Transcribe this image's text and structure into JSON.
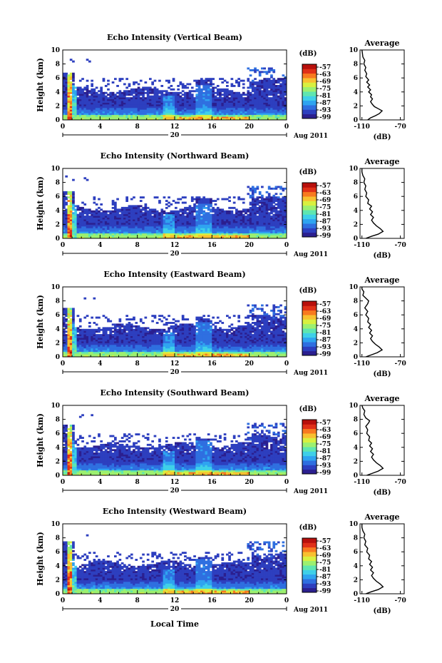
{
  "chart_data": [
    {
      "type": "heatmap",
      "title": "Echo Intensity (Vertical Beam)",
      "ylabel": "Height (km)",
      "ylim": [
        0,
        10
      ],
      "yticks": [
        "0",
        "2",
        "4",
        "6",
        "8",
        "10"
      ],
      "xlim": [
        0,
        24
      ],
      "xticks": [
        "0",
        "4",
        "8",
        "12",
        "16",
        "20",
        "0"
      ],
      "date_day": "20",
      "date_label": "Aug 2011",
      "colorbar": {
        "unit": "(dB)",
        "labels": [
          "-57",
          "-63",
          "-69",
          "-75",
          "-81",
          "-87",
          "-93",
          "-99"
        ],
        "range": [
          -99,
          -57
        ]
      },
      "average": {
        "title": "Average",
        "xlabel": "(dB)",
        "xticks": [
          "-110",
          "-70"
        ],
        "xlim": [
          -112,
          -66
        ],
        "profile": [
          [
            -104,
            0
          ],
          [
            -101,
            0.3
          ],
          [
            -96,
            0.6
          ],
          [
            -92,
            0.9
          ],
          [
            -89,
            1.3
          ],
          [
            -93,
            1.6
          ],
          [
            -97,
            1.9
          ],
          [
            -99,
            2.2
          ],
          [
            -101,
            2.6
          ],
          [
            -99,
            3.0
          ],
          [
            -101,
            3.3
          ],
          [
            -100,
            3.6
          ],
          [
            -103,
            4.0
          ],
          [
            -101,
            4.3
          ],
          [
            -104,
            4.7
          ],
          [
            -102,
            5.0
          ],
          [
            -105,
            5.4
          ],
          [
            -103,
            5.7
          ],
          [
            -106,
            6.2
          ],
          [
            -105,
            6.6
          ],
          [
            -107,
            7.1
          ],
          [
            -106,
            7.5
          ],
          [
            -108,
            8.0
          ],
          [
            -107,
            8.5
          ],
          [
            -109,
            9.0
          ],
          [
            -109.5,
            9.5
          ],
          [
            -110,
            10
          ]
        ]
      }
    },
    {
      "type": "heatmap",
      "title": "Echo Intensity (Northward Beam)",
      "ylabel": "Height (km)",
      "ylim": [
        0,
        10
      ],
      "yticks": [
        "0",
        "2",
        "4",
        "6",
        "8",
        "10"
      ],
      "xlim": [
        0,
        24
      ],
      "xticks": [
        "0",
        "4",
        "8",
        "12",
        "16",
        "20",
        "0"
      ],
      "date_day": "20",
      "date_label": "Aug 2011",
      "colorbar": {
        "unit": "(dB)",
        "labels": [
          "-57",
          "-63",
          "-69",
          "-75",
          "-81",
          "-87",
          "-93",
          "-99"
        ],
        "range": [
          -99,
          -57
        ]
      },
      "average": {
        "title": "Average",
        "xlabel": "(dB)",
        "xticks": [
          "-110",
          "-70"
        ],
        "xlim": [
          -112,
          -66
        ],
        "profile": [
          [
            -106,
            0
          ],
          [
            -100,
            0.3
          ],
          [
            -93,
            0.6
          ],
          [
            -88,
            1.0
          ],
          [
            -91,
            1.4
          ],
          [
            -95,
            1.8
          ],
          [
            -98,
            2.2
          ],
          [
            -100,
            2.6
          ],
          [
            -98,
            3.0
          ],
          [
            -101,
            3.4
          ],
          [
            -99,
            3.8
          ],
          [
            -102,
            4.2
          ],
          [
            -100,
            4.6
          ],
          [
            -104,
            5.0
          ],
          [
            -103,
            5.5
          ],
          [
            -106,
            6.0
          ],
          [
            -105,
            6.5
          ],
          [
            -107,
            7.0
          ],
          [
            -106,
            7.5
          ],
          [
            -108,
            8.0
          ],
          [
            -107,
            8.5
          ],
          [
            -109,
            9.0
          ],
          [
            -110,
            9.5
          ],
          [
            -110,
            10
          ]
        ]
      }
    },
    {
      "type": "heatmap",
      "title": "Echo Intensity (Eastward Beam)",
      "ylabel": "Height (km)",
      "ylim": [
        0,
        10
      ],
      "yticks": [
        "0",
        "2",
        "4",
        "6",
        "8",
        "10"
      ],
      "xlim": [
        0,
        24
      ],
      "xticks": [
        "0",
        "4",
        "8",
        "12",
        "16",
        "20",
        "0"
      ],
      "date_day": "20",
      "date_label": "Aug 2011",
      "colorbar": {
        "unit": "(dB)",
        "labels": [
          "-57",
          "-63",
          "-69",
          "-75",
          "-81",
          "-87",
          "-93",
          "-99"
        ],
        "range": [
          -99,
          -57
        ]
      },
      "average": {
        "title": "Average",
        "xlabel": "(dB)",
        "xticks": [
          "-110",
          "-70"
        ],
        "xlim": [
          -112,
          -66
        ],
        "profile": [
          [
            -106,
            0
          ],
          [
            -100,
            0.3
          ],
          [
            -94,
            0.6
          ],
          [
            -89,
            1.0
          ],
          [
            -92,
            1.4
          ],
          [
            -96,
            1.8
          ],
          [
            -99,
            2.2
          ],
          [
            -101,
            2.6
          ],
          [
            -99,
            3.0
          ],
          [
            -102,
            3.4
          ],
          [
            -100,
            3.8
          ],
          [
            -103,
            4.2
          ],
          [
            -101,
            4.6
          ],
          [
            -104,
            5.0
          ],
          [
            -103,
            5.5
          ],
          [
            -106,
            6.0
          ],
          [
            -104,
            6.5
          ],
          [
            -107,
            7.0
          ],
          [
            -104,
            7.6
          ],
          [
            -103,
            8.0
          ],
          [
            -106,
            8.4
          ],
          [
            -109,
            8.8
          ],
          [
            -108,
            9.3
          ],
          [
            -110,
            9.7
          ],
          [
            -110,
            10
          ]
        ]
      }
    },
    {
      "type": "heatmap",
      "title": "Echo Intensity (Southward Beam)",
      "ylabel": "Height (km)",
      "ylim": [
        0,
        10
      ],
      "yticks": [
        "0",
        "2",
        "4",
        "6",
        "8",
        "10"
      ],
      "xlim": [
        0,
        24
      ],
      "xticks": [
        "0",
        "4",
        "8",
        "12",
        "16",
        "20",
        "0"
      ],
      "date_day": "20",
      "date_label": "Aug 2011",
      "colorbar": {
        "unit": "(dB)",
        "labels": [
          "-57",
          "-63",
          "-69",
          "-75",
          "-81",
          "-87",
          "-93",
          "-99"
        ],
        "range": [
          -99,
          -57
        ]
      },
      "average": {
        "title": "Average",
        "xlabel": "(dB)",
        "xticks": [
          "-110",
          "-70"
        ],
        "xlim": [
          -112,
          -66
        ],
        "profile": [
          [
            -105,
            0
          ],
          [
            -99,
            0.3
          ],
          [
            -93,
            0.6
          ],
          [
            -88,
            1.0
          ],
          [
            -91,
            1.4
          ],
          [
            -95,
            1.8
          ],
          [
            -98,
            2.2
          ],
          [
            -100,
            2.6
          ],
          [
            -98,
            3.0
          ],
          [
            -101,
            3.4
          ],
          [
            -99,
            3.8
          ],
          [
            -102,
            4.2
          ],
          [
            -100,
            4.6
          ],
          [
            -103,
            5.0
          ],
          [
            -102,
            5.5
          ],
          [
            -105,
            6.0
          ],
          [
            -104,
            6.5
          ],
          [
            -106,
            7.0
          ],
          [
            -103,
            7.5
          ],
          [
            -102,
            7.8
          ],
          [
            -106,
            8.2
          ],
          [
            -108,
            8.7
          ],
          [
            -107,
            9.2
          ],
          [
            -109,
            9.6
          ],
          [
            -110,
            10
          ]
        ]
      }
    },
    {
      "type": "heatmap",
      "title": "Echo Intensity (Westward Beam)",
      "ylabel": "Height (km)",
      "ylim": [
        0,
        10
      ],
      "yticks": [
        "0",
        "2",
        "4",
        "6",
        "8",
        "10"
      ],
      "xlim": [
        0,
        24
      ],
      "xticks": [
        "0",
        "4",
        "8",
        "12",
        "16",
        "20",
        "0"
      ],
      "date_day": "20",
      "date_label": "Aug 2011",
      "colorbar": {
        "unit": "(dB)",
        "labels": [
          "-57",
          "-63",
          "-69",
          "-75",
          "-81",
          "-87",
          "-93",
          "-99"
        ],
        "range": [
          -99,
          -57
        ]
      },
      "average": {
        "title": "Average",
        "xlabel": "(dB)",
        "xticks": [
          "-110",
          "-70"
        ],
        "xlim": [
          -112,
          -66
        ],
        "profile": [
          [
            -106,
            0
          ],
          [
            -100,
            0.3
          ],
          [
            -93,
            0.6
          ],
          [
            -88,
            1.0
          ],
          [
            -91,
            1.4
          ],
          [
            -95,
            1.8
          ],
          [
            -98,
            2.2
          ],
          [
            -100,
            2.6
          ],
          [
            -98,
            3.0
          ],
          [
            -101,
            3.4
          ],
          [
            -99,
            3.8
          ],
          [
            -102,
            4.2
          ],
          [
            -100,
            4.6
          ],
          [
            -103,
            5.0
          ],
          [
            -102,
            5.5
          ],
          [
            -105,
            6.0
          ],
          [
            -104,
            6.5
          ],
          [
            -107,
            7.0
          ],
          [
            -106,
            7.5
          ],
          [
            -108,
            8.0
          ],
          [
            -107,
            8.5
          ],
          [
            -109,
            9.0
          ],
          [
            -110,
            9.5
          ],
          [
            -110,
            10
          ]
        ]
      }
    }
  ],
  "footer": {
    "xlabel": "Local Time"
  },
  "colors": {
    "colormap": [
      "#2b1f8f",
      "#2d3fbf",
      "#2f6fe0",
      "#2fa4f0",
      "#3fd0e8",
      "#5fe6b0",
      "#9cf070",
      "#d8f040",
      "#f8c030",
      "#f87a20",
      "#e03018",
      "#b8100c"
    ]
  }
}
